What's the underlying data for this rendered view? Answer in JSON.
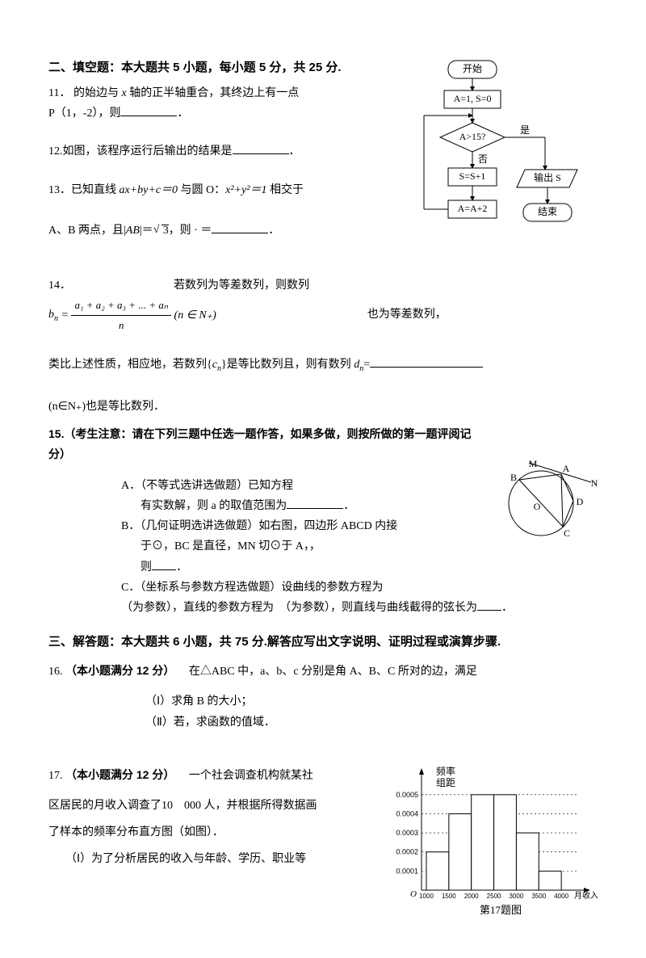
{
  "section2": {
    "title": "二、填空题：本大题共 5 小题，每小题 5 分，共 25 分."
  },
  "q11": {
    "num": "11．",
    "text1": "的始边与",
    "x_axis": " x ",
    "text2": "轴的正半轴重合，其终边上有一点",
    "line2": "P（1，-2），则",
    "period": "．"
  },
  "q12": {
    "num": "12.",
    "text": "如图，该程序运行后输出的结果是",
    "period": "．"
  },
  "q13": {
    "num": "13．",
    "text1": "已知直线",
    "eq1": " ax+by+c＝0 ",
    "text2": "与圆 O：",
    "eq2": "x²+y²＝1 ",
    "text3": "相交于",
    "line2_a": "A、B 两点，且|",
    "line2_ab": "AB",
    "line2_b": "|＝",
    "sqrt": "3",
    "line2_c": "，则 · ＝",
    "period": "．"
  },
  "q14": {
    "num": "14．",
    "text1": "若数列为等差数列，则数列",
    "b_n": "b",
    "b_n_sub": "n",
    "eq_mid": " = ",
    "frac_num": "a₁ + a₂ + a₃ + ... + aₙ",
    "frac_den": "n",
    "cond": "(n ∈ N₊)",
    "text2": "也为等差数列，",
    "line3_a": "类比上述性质，相应地，若数列{",
    "cn": "c",
    "cn_sub": "n",
    "line3_b": "}是等比数列且，则有数列 ",
    "dn": "d",
    "dn_sub": "n",
    "line3_c": "=",
    "line4": "(n∈N₊)也是等比数列．"
  },
  "q15": {
    "head": "15.（考生注意：请在下列三题中任选一题作答，如果多做，则按所做的第一题评阅记分）",
    "A1": "A．（不等式选讲选做题）已知方程",
    "A2": "有实数解，则 a 的取值范围为",
    "Ap": "．",
    "B1": "B．（几何证明选讲选做题）如右图，四边形 ABCD 内接",
    "B2": "于⊙，BC 是直径，MN 切⊙于 A，，",
    "B3": "则",
    "Bp": "．",
    "C1": "C．（坐标系与参数方程选做题）设曲线的参数方程为",
    "C2": "（为参数），直线的参数方程为　（为参数），则直线与曲线截得的弦长为",
    "Cp": "．"
  },
  "section3": {
    "title": "三、解答题：本大题共 6 小题，共 75 分.解答应写出文字说明、证明过程或演算步骤."
  },
  "q16": {
    "num": "16.",
    "head": "（本小题满分 12 分）",
    "text": "　在△ABC 中，a、b、c 分别是角 A、B、C 所对的边，满足",
    "p1": "（Ⅰ）求角 B 的大小；",
    "p2": "（Ⅱ）若，求函数的值域．"
  },
  "q17": {
    "num": "17.",
    "head": "（本小题满分 12 分）",
    "text1": "　一个社会调查机构就某社",
    "line2": "区居民的月收入调查了10　000 人，并根据所得数据画",
    "line3": "了样本的频率分布直方图（如图）．",
    "line4": "　　（Ⅰ）为了分析居民的收入与年龄、学历、职业等"
  },
  "flowchart": {
    "start": "开始",
    "init": "A=1, S=0",
    "cond": "A>15?",
    "yes": "是",
    "no": "否",
    "step1": "S=S+1",
    "step2": "A=A+2",
    "out": "输出 S",
    "end": "结束",
    "box_stroke": "#000000",
    "box_fill": "#ffffff",
    "font_size": 12
  },
  "circle": {
    "labels": {
      "M": "M",
      "A": "A",
      "N": "N",
      "B": "B",
      "C": "C",
      "D": "D",
      "O": "O"
    },
    "stroke": "#000000"
  },
  "histogram": {
    "ylabel1": "频率",
    "ylabel2": "组距",
    "xlabel": "月收入(元)",
    "caption": "第17题图",
    "xticks": [
      "1000",
      "1500",
      "2000",
      "2500",
      "3000",
      "3500",
      "4000"
    ],
    "yticks": [
      "0.0001",
      "0.0002",
      "0.0003",
      "0.0004",
      "0.0005"
    ],
    "bars": [
      0.0002,
      0.0004,
      0.0005,
      0.0005,
      0.0003,
      0.0001
    ],
    "ymax": 0.00055,
    "axis_color": "#000000",
    "grid_color": "#000000",
    "fill": "#ffffff"
  }
}
